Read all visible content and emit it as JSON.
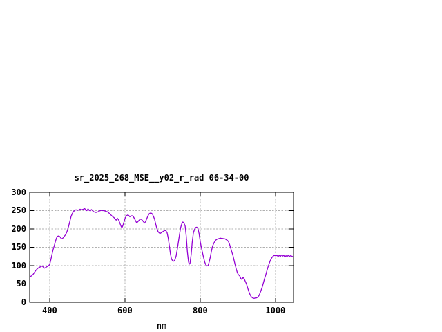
{
  "page": {
    "background": "#ffffff"
  },
  "chart_data": {
    "type": "line",
    "title": "sr_2025_268_MSE__y02_r_rad 06-34-00",
    "xlabel": "nm",
    "ylabel": "",
    "xlim": [
      347,
      1048
    ],
    "ylim": [
      0,
      300
    ],
    "x_ticks": [
      400,
      600,
      800,
      1000
    ],
    "y_ticks": [
      0,
      50,
      100,
      150,
      200,
      250,
      300
    ],
    "grid": true,
    "legend": "none",
    "colors": {
      "line": "#9400d3",
      "grid": "#b0b0b0",
      "axis": "#000000",
      "text": "#000000",
      "background": "#ffffff"
    },
    "series": [
      {
        "name": "sr_2025_268_MSE__y02_r_rad",
        "points": [
          [
            348,
            70
          ],
          [
            352,
            72
          ],
          [
            356,
            76
          ],
          [
            360,
            82
          ],
          [
            364,
            88
          ],
          [
            368,
            92
          ],
          [
            372,
            95
          ],
          [
            376,
            97
          ],
          [
            380,
            99
          ],
          [
            383,
            96
          ],
          [
            386,
            93
          ],
          [
            390,
            95
          ],
          [
            394,
            98
          ],
          [
            398,
            101
          ],
          [
            400,
            103
          ],
          [
            403,
            115
          ],
          [
            406,
            130
          ],
          [
            409,
            143
          ],
          [
            412,
            153
          ],
          [
            415,
            165
          ],
          [
            418,
            175
          ],
          [
            421,
            180
          ],
          [
            424,
            181
          ],
          [
            427,
            179
          ],
          [
            430,
            175
          ],
          [
            433,
            173
          ],
          [
            436,
            176
          ],
          [
            439,
            180
          ],
          [
            442,
            184
          ],
          [
            445,
            190
          ],
          [
            448,
            198
          ],
          [
            451,
            210
          ],
          [
            454,
            222
          ],
          [
            457,
            234
          ],
          [
            460,
            242
          ],
          [
            463,
            247
          ],
          [
            466,
            250
          ],
          [
            469,
            252
          ],
          [
            472,
            252
          ],
          [
            475,
            251
          ],
          [
            478,
            252
          ],
          [
            481,
            254
          ],
          [
            484,
            252
          ],
          [
            487,
            253
          ],
          [
            490,
            254
          ],
          [
            493,
            256
          ],
          [
            496,
            251
          ],
          [
            499,
            250
          ],
          [
            502,
            255
          ],
          [
            505,
            251
          ],
          [
            508,
            249
          ],
          [
            511,
            253
          ],
          [
            514,
            250
          ],
          [
            517,
            247
          ],
          [
            520,
            246
          ],
          [
            523,
            245
          ],
          [
            526,
            246
          ],
          [
            529,
            247
          ],
          [
            532,
            249
          ],
          [
            535,
            250
          ],
          [
            538,
            251
          ],
          [
            541,
            250
          ],
          [
            544,
            250
          ],
          [
            547,
            249
          ],
          [
            550,
            248
          ],
          [
            553,
            247
          ],
          [
            556,
            245
          ],
          [
            559,
            242
          ],
          [
            562,
            239
          ],
          [
            565,
            236
          ],
          [
            568,
            233
          ],
          [
            571,
            231
          ],
          [
            574,
            227
          ],
          [
            577,
            224
          ],
          [
            580,
            229
          ],
          [
            583,
            225
          ],
          [
            586,
            218
          ],
          [
            589,
            209
          ],
          [
            592,
            203
          ],
          [
            595,
            210
          ],
          [
            598,
            221
          ],
          [
            601,
            230
          ],
          [
            604,
            236
          ],
          [
            607,
            238
          ],
          [
            610,
            237
          ],
          [
            613,
            233
          ],
          [
            616,
            235
          ],
          [
            619,
            236
          ],
          [
            622,
            234
          ],
          [
            625,
            229
          ],
          [
            628,
            223
          ],
          [
            631,
            217
          ],
          [
            634,
            219
          ],
          [
            637,
            223
          ],
          [
            640,
            226
          ],
          [
            643,
            227
          ],
          [
            646,
            224
          ],
          [
            649,
            220
          ],
          [
            652,
            216
          ],
          [
            655,
            220
          ],
          [
            658,
            228
          ],
          [
            661,
            235
          ],
          [
            664,
            241
          ],
          [
            667,
            243
          ],
          [
            670,
            243
          ],
          [
            673,
            241
          ],
          [
            676,
            234
          ],
          [
            679,
            226
          ],
          [
            682,
            212
          ],
          [
            685,
            201
          ],
          [
            688,
            193
          ],
          [
            691,
            189
          ],
          [
            694,
            188
          ],
          [
            697,
            190
          ],
          [
            700,
            192
          ],
          [
            703,
            194
          ],
          [
            706,
            196
          ],
          [
            709,
            195
          ],
          [
            712,
            190
          ],
          [
            715,
            176
          ],
          [
            718,
            154
          ],
          [
            721,
            132
          ],
          [
            724,
            118
          ],
          [
            727,
            113
          ],
          [
            730,
            112
          ],
          [
            733,
            116
          ],
          [
            736,
            126
          ],
          [
            739,
            143
          ],
          [
            742,
            163
          ],
          [
            745,
            184
          ],
          [
            748,
            203
          ],
          [
            751,
            214
          ],
          [
            754,
            219
          ],
          [
            757,
            216
          ],
          [
            760,
            208
          ],
          [
            763,
            180
          ],
          [
            766,
            138
          ],
          [
            769,
            110
          ],
          [
            771,
            104
          ],
          [
            773,
            106
          ],
          [
            776,
            130
          ],
          [
            779,
            165
          ],
          [
            782,
            189
          ],
          [
            785,
            199
          ],
          [
            788,
            204
          ],
          [
            791,
            205
          ],
          [
            794,
            201
          ],
          [
            797,
            188
          ],
          [
            800,
            166
          ],
          [
            803,
            150
          ],
          [
            806,
            136
          ],
          [
            809,
            122
          ],
          [
            812,
            110
          ],
          [
            815,
            102
          ],
          [
            818,
            99
          ],
          [
            821,
            100
          ],
          [
            824,
            110
          ],
          [
            827,
            124
          ],
          [
            830,
            140
          ],
          [
            833,
            153
          ],
          [
            836,
            161
          ],
          [
            839,
            166
          ],
          [
            842,
            170
          ],
          [
            845,
            172
          ],
          [
            848,
            173
          ],
          [
            851,
            174
          ],
          [
            854,
            175
          ],
          [
            857,
            174
          ],
          [
            860,
            174
          ],
          [
            863,
            173
          ],
          [
            866,
            173
          ],
          [
            869,
            171
          ],
          [
            872,
            169
          ],
          [
            875,
            166
          ],
          [
            878,
            158
          ],
          [
            881,
            148
          ],
          [
            884,
            138
          ],
          [
            887,
            128
          ],
          [
            890,
            115
          ],
          [
            893,
            102
          ],
          [
            896,
            90
          ],
          [
            899,
            80
          ],
          [
            902,
            75
          ],
          [
            905,
            72
          ],
          [
            908,
            65
          ],
          [
            911,
            62
          ],
          [
            914,
            68
          ],
          [
            917,
            64
          ],
          [
            920,
            57
          ],
          [
            923,
            50
          ],
          [
            926,
            40
          ],
          [
            929,
            30
          ],
          [
            932,
            22
          ],
          [
            935,
            16
          ],
          [
            938,
            13
          ],
          [
            941,
            11
          ],
          [
            944,
            11
          ],
          [
            947,
            12
          ],
          [
            950,
            12
          ],
          [
            953,
            14
          ],
          [
            956,
            18
          ],
          [
            959,
            25
          ],
          [
            962,
            33
          ],
          [
            965,
            42
          ],
          [
            968,
            53
          ],
          [
            971,
            64
          ],
          [
            974,
            74
          ],
          [
            977,
            85
          ],
          [
            980,
            95
          ],
          [
            983,
            105
          ],
          [
            986,
            113
          ],
          [
            989,
            119
          ],
          [
            992,
            124
          ],
          [
            995,
            127
          ],
          [
            998,
            128
          ],
          [
            1001,
            127
          ],
          [
            1004,
            128
          ],
          [
            1007,
            125
          ],
          [
            1010,
            128
          ],
          [
            1013,
            125
          ],
          [
            1016,
            129
          ],
          [
            1019,
            126
          ],
          [
            1022,
            128
          ],
          [
            1025,
            124
          ],
          [
            1028,
            127
          ],
          [
            1031,
            125
          ],
          [
            1034,
            128
          ],
          [
            1037,
            125
          ],
          [
            1040,
            127
          ],
          [
            1043,
            126
          ],
          [
            1046,
            125
          ]
        ]
      }
    ]
  }
}
